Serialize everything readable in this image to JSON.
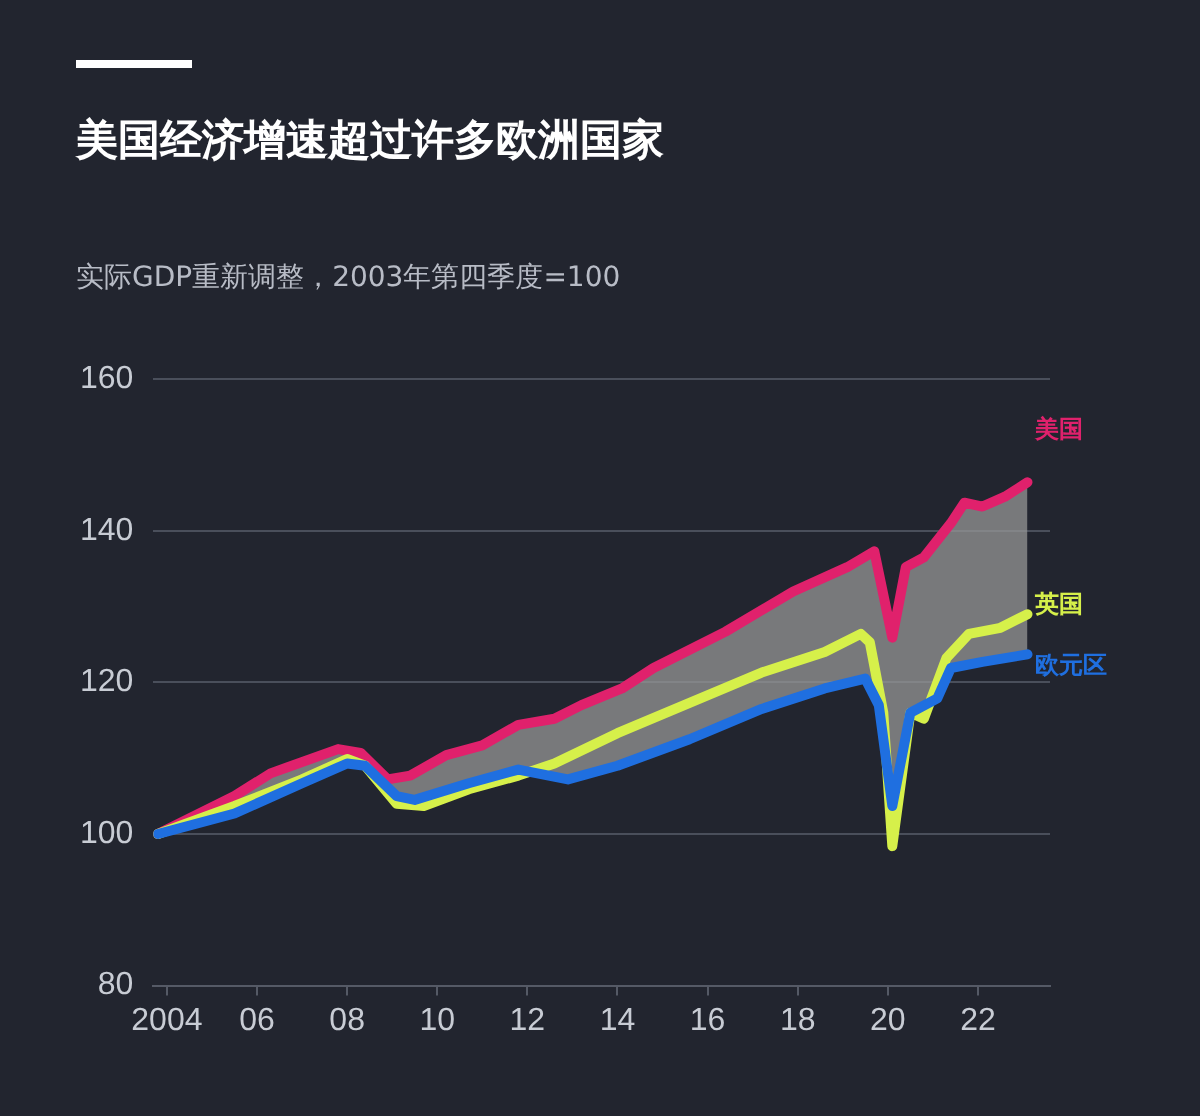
{
  "chart_data": {
    "type": "line",
    "title": "美国经济增速超过许多欧洲国家",
    "subtitle": "实际GDP重新调整，2003年第四季度=100",
    "xlim": [
      2003.7,
      2023.6
    ],
    "xticks": [
      {
        "value": 2004,
        "label": "2004"
      },
      {
        "value": 2006,
        "label": "06"
      },
      {
        "value": 2008,
        "label": "08"
      },
      {
        "value": 2010,
        "label": "10"
      },
      {
        "value": 2012,
        "label": "12"
      },
      {
        "value": 2014,
        "label": "14"
      },
      {
        "value": 2016,
        "label": "16"
      },
      {
        "value": 2018,
        "label": "18"
      },
      {
        "value": 2020,
        "label": "20"
      },
      {
        "value": 2022,
        "label": "22"
      }
    ],
    "ylim": [
      80,
      160
    ],
    "yticks": [
      80,
      100,
      120,
      140,
      160
    ],
    "grid": "y",
    "legend": false,
    "marker": "none",
    "line_style": "solid",
    "series": [
      {
        "name": "美国",
        "color": "#e0216c",
        "x": [
          2003.8,
          2005.5,
          2006.3,
          2007.8,
          2008.3,
          2008.9,
          2009.4,
          2010.2,
          2011,
          2011.8,
          2012.6,
          2013.2,
          2014.1,
          2014.8,
          2016.4,
          2017.9,
          2019.1,
          2019.7,
          2020.1,
          2020.4,
          2020.8,
          2021.4,
          2021.7,
          2022.1,
          2022.6,
          2023.1
        ],
        "values": [
          100,
          105,
          108,
          111.2,
          110.7,
          107.2,
          107.7,
          110.4,
          111.7,
          114.4,
          115.2,
          117,
          119.2,
          121.9,
          126.7,
          132,
          135.2,
          137.3,
          125.9,
          135.2,
          136.5,
          141,
          143.7,
          143.2,
          144.5,
          146.4
        ]
      },
      {
        "name": "英国",
        "color": "#d6f04a",
        "x": [
          2003.8,
          2005.5,
          2007,
          2008,
          2008.4,
          2009.1,
          2009.7,
          2010.7,
          2011.8,
          2012.6,
          2014,
          2015.6,
          2017.2,
          2018.6,
          2019.4,
          2019.6,
          2019.9,
          2020.1,
          2020.5,
          2020.8,
          2021.3,
          2021.8,
          2022.5,
          2023.1
        ],
        "values": [
          100,
          103.7,
          107.2,
          109.9,
          109,
          104,
          103.7,
          105.9,
          107.7,
          109.3,
          113.3,
          117.3,
          121.3,
          124,
          126.4,
          125.3,
          116,
          98.4,
          116,
          115.2,
          123.2,
          126.4,
          127.2,
          129
        ]
      },
      {
        "name": "欧元区",
        "color": "#1f6fe0",
        "x": [
          2003.8,
          2005.5,
          2007,
          2008,
          2008.4,
          2009.1,
          2009.5,
          2010.7,
          2011.8,
          2012.9,
          2014,
          2015.6,
          2017.2,
          2018.6,
          2019.5,
          2019.8,
          2020.1,
          2020.5,
          2021.1,
          2021.4,
          2022.1,
          2023.1
        ],
        "values": [
          100,
          102.7,
          106.7,
          109.3,
          109,
          105,
          104.5,
          106.7,
          108.5,
          107.2,
          109,
          112.5,
          116.5,
          119.2,
          120.5,
          117,
          103.7,
          116,
          117.9,
          121.9,
          122.7,
          123.7
        ]
      }
    ]
  }
}
